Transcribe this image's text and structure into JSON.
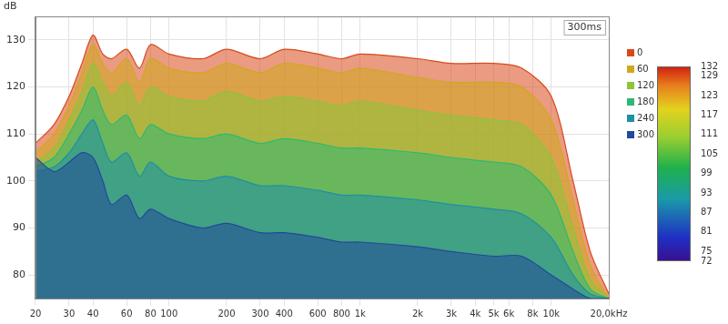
{
  "chart_data": {
    "type": "line",
    "ylabel": "dB",
    "annotations": [
      "300ms"
    ],
    "x": [
      20,
      25,
      30,
      35,
      40,
      45,
      50,
      60,
      70,
      80,
      100,
      150,
      200,
      300,
      400,
      600,
      800,
      1000,
      2000,
      3000,
      5000,
      7000,
      10000,
      13000,
      16000,
      20000
    ],
    "xlim": [
      20,
      20000
    ],
    "xticks": [
      20,
      30,
      40,
      60,
      80,
      100,
      200,
      300,
      400,
      600,
      800,
      {
        "value": 1000,
        "label": "1k"
      },
      {
        "value": 2000,
        "label": "2k"
      },
      {
        "value": 3000,
        "label": "3k"
      },
      {
        "value": 4000,
        "label": "4k"
      },
      {
        "value": 5000,
        "label": "5k"
      },
      {
        "value": 6000,
        "label": "6k"
      },
      {
        "value": 8000,
        "label": "8k"
      },
      {
        "value": 10000,
        "label": "10k"
      },
      {
        "value": 20000,
        "label": "20,0kHz"
      }
    ],
    "log": "x",
    "ylim": [
      75,
      135
    ],
    "yticks": [
      80,
      90,
      100,
      110,
      120,
      130
    ],
    "grid": true,
    "series": [
      {
        "name": "0",
        "color": "#d8491a",
        "values": [
          108,
          112,
          118,
          125,
          131,
          127,
          126,
          128,
          124,
          129,
          127,
          126,
          128,
          126,
          128,
          127,
          126,
          127,
          126,
          125,
          125,
          124,
          118,
          100,
          85,
          76
        ]
      },
      {
        "name": "60",
        "color": "#d0a81e",
        "values": [
          106,
          110,
          116,
          123,
          129,
          125,
          123,
          126,
          121,
          126,
          124,
          123,
          125,
          123,
          125,
          124,
          123,
          124,
          122,
          121,
          121,
          120,
          113,
          96,
          82,
          75
        ]
      },
      {
        "name": "120",
        "color": "#8cc43a",
        "values": [
          104,
          107,
          113,
          119,
          125,
          121,
          118,
          121,
          116,
          120,
          118,
          117,
          119,
          117,
          118,
          117,
          116,
          117,
          115,
          114,
          113,
          112,
          105,
          90,
          79,
          75
        ]
      },
      {
        "name": "180",
        "color": "#2fb873",
        "values": [
          103,
          105,
          110,
          115,
          120,
          115,
          112,
          114,
          109,
          112,
          110,
          109,
          110,
          108,
          109,
          108,
          107,
          107,
          106,
          105,
          104,
          103,
          97,
          85,
          77,
          75
        ]
      },
      {
        "name": "240",
        "color": "#1f8fa6",
        "values": [
          102,
          103,
          106,
          110,
          113,
          108,
          104,
          106,
          101,
          104,
          101,
          100,
          101,
          99,
          99,
          98,
          97,
          97,
          96,
          95,
          94,
          93,
          88,
          80,
          76,
          75
        ]
      },
      {
        "name": "300",
        "color": "#23489c",
        "values": [
          105,
          102,
          104,
          106,
          105,
          100,
          95,
          97,
          92,
          94,
          92,
          90,
          91,
          89,
          89,
          88,
          87,
          87,
          86,
          85,
          84,
          84,
          80,
          77,
          75,
          75
        ]
      }
    ],
    "colorbar": {
      "range": [
        72,
        132
      ],
      "ticks": [
        72,
        75,
        81,
        87,
        93,
        99,
        105,
        111,
        117,
        123,
        129,
        132
      ]
    }
  }
}
